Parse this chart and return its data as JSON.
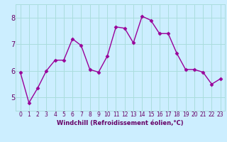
{
  "x": [
    0,
    1,
    2,
    3,
    4,
    5,
    6,
    7,
    8,
    9,
    10,
    11,
    12,
    13,
    14,
    15,
    16,
    17,
    18,
    19,
    20,
    21,
    22,
    23
  ],
  "y": [
    5.95,
    4.8,
    5.35,
    6.0,
    6.4,
    6.4,
    7.2,
    6.95,
    6.05,
    5.95,
    6.55,
    7.65,
    7.6,
    7.05,
    8.05,
    7.9,
    7.4,
    7.4,
    6.65,
    6.05,
    6.05,
    5.95,
    5.5,
    5.7
  ],
  "line_color": "#990099",
  "marker": "D",
  "marker_size": 2.5,
  "bg_color": "#cceeff",
  "grid_color": "#aadddd",
  "xlabel": "Windchill (Refroidissement éolien,°C)",
  "xlabel_color": "#660066",
  "tick_color": "#660066",
  "xlim_min": -0.5,
  "xlim_max": 23.5,
  "ylim_min": 4.5,
  "ylim_max": 8.5,
  "yticks": [
    5,
    6,
    7,
    8
  ],
  "xticks": [
    0,
    1,
    2,
    3,
    4,
    5,
    6,
    7,
    8,
    9,
    10,
    11,
    12,
    13,
    14,
    15,
    16,
    17,
    18,
    19,
    20,
    21,
    22,
    23
  ],
  "tick_fontsize": 5.5,
  "ytick_fontsize": 7,
  "xlabel_fontsize": 6,
  "linewidth": 1.0
}
